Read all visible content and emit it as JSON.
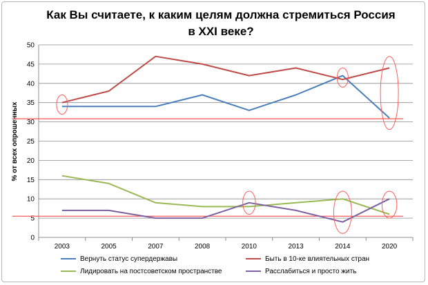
{
  "chart_data": {
    "type": "line",
    "title_lines": [
      "Как Вы считаете, к каким целям должна стремиться Россия",
      "в XXI веке?"
    ],
    "ylabel": "% от всех опрошенных",
    "xlabel": "",
    "categories": [
      "2003",
      "2005",
      "2007",
      "2008",
      "2010",
      "2013",
      "2014",
      "2020"
    ],
    "ylim": [
      0,
      50
    ],
    "yticks": [
      0,
      5,
      10,
      15,
      20,
      25,
      30,
      35,
      40,
      45,
      50
    ],
    "grid": true,
    "legend_position": "bottom",
    "series": [
      {
        "name": "Вернуть статус супердержавы",
        "color": "#4a7ebb",
        "values": [
          34,
          34,
          34,
          37,
          33,
          37,
          42,
          31
        ]
      },
      {
        "name": "Быть в 10-ке влиятельных стран",
        "color": "#be4b48",
        "values": [
          35,
          38,
          47,
          45,
          42,
          44,
          41,
          44
        ]
      },
      {
        "name": "Лидировать на постсоветском пространстве",
        "color": "#98b954",
        "values": [
          16,
          14,
          9,
          8,
          8,
          9,
          10,
          6
        ]
      },
      {
        "name": "Расслабиться и просто жить",
        "color": "#7d60a0",
        "values": [
          7,
          7,
          5,
          5,
          9,
          7,
          4,
          10
        ]
      }
    ],
    "reference_lines": [
      {
        "value": 30.8,
        "color": "#ff4d4d"
      },
      {
        "value": 5.5,
        "color": "#ff4d4d"
      }
    ],
    "highlights": [
      {
        "category": "2003",
        "range": [
          32,
          37
        ]
      },
      {
        "category": "2014",
        "range": [
          39,
          44
        ]
      },
      {
        "category": "2020",
        "range": [
          28,
          47
        ]
      },
      {
        "category": "2010",
        "range": [
          6,
          12
        ]
      },
      {
        "category": "2014",
        "range": [
          1,
          12
        ]
      },
      {
        "category": "2020",
        "range": [
          5,
          12
        ]
      }
    ],
    "highlight_color": "#ff5c5c"
  }
}
